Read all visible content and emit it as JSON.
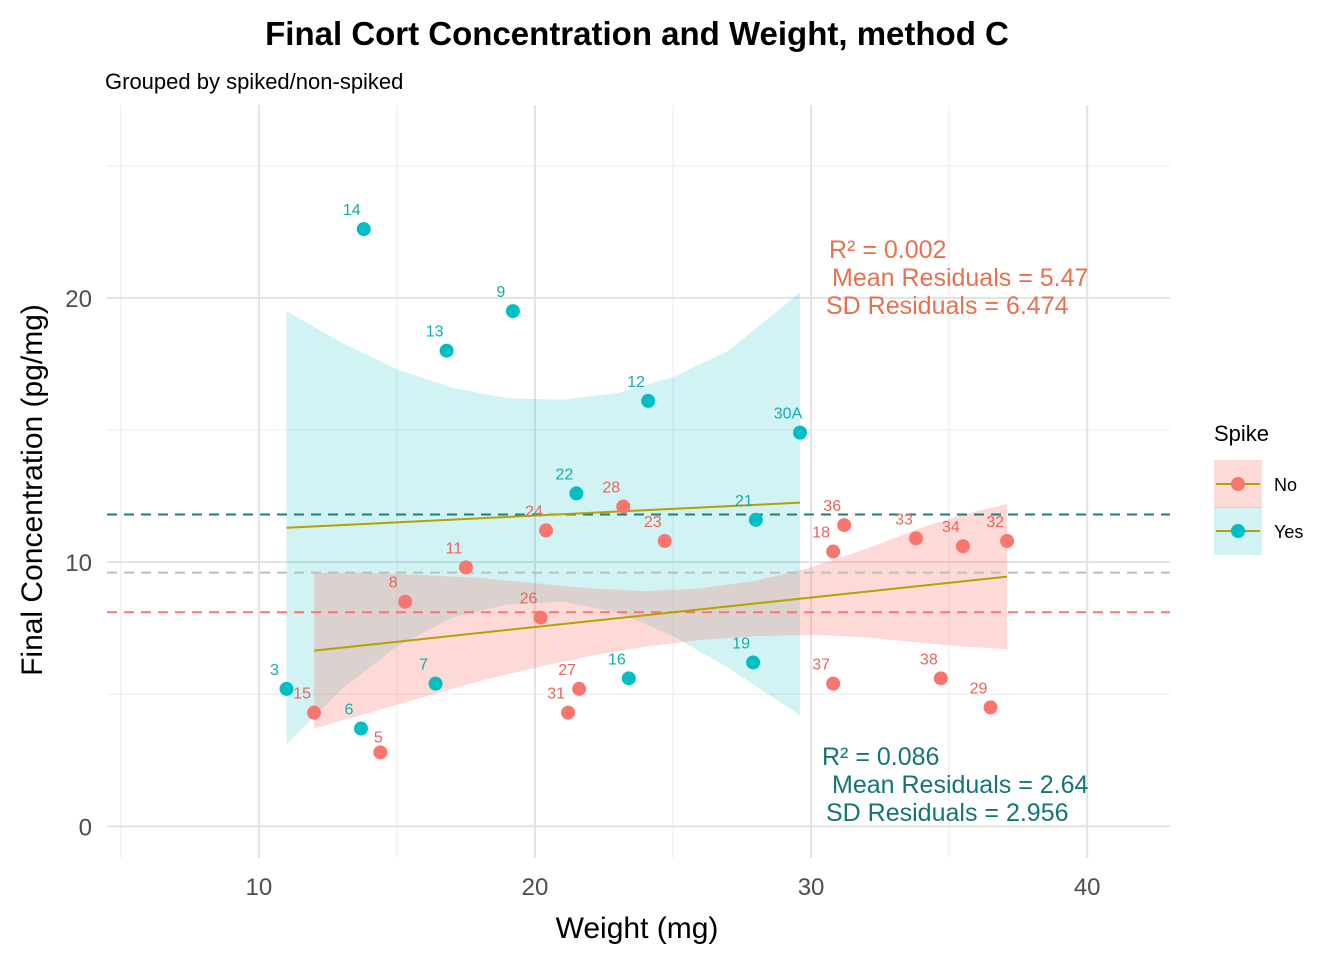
{
  "chart_data": {
    "type": "scatter",
    "title": "Final Cort Concentration and Weight, method C",
    "subtitle": "Grouped by spiked/non-spiked",
    "xlabel": "Weight (mg)",
    "ylabel": "Final Concentration (pg/mg)",
    "xlim": [
      4.5,
      43
    ],
    "ylim": [
      -1.2,
      27.3
    ],
    "x_ticks": [
      10,
      20,
      30,
      40
    ],
    "y_ticks": [
      0,
      10,
      20
    ],
    "grid": true,
    "legend": {
      "title": "Spike",
      "position": "right",
      "entries": [
        {
          "label": "No",
          "color": "#F8766D"
        },
        {
          "label": "Yes",
          "color": "#00BFC4"
        }
      ]
    },
    "series": [
      {
        "name": "No",
        "color": "#F8766D",
        "points": [
          {
            "label": "15",
            "x": 12.0,
            "y": 4.3
          },
          {
            "label": "5",
            "x": 14.4,
            "y": 2.8
          },
          {
            "label": "8",
            "x": 15.3,
            "y": 8.5
          },
          {
            "label": "11",
            "x": 17.5,
            "y": 9.8
          },
          {
            "label": "26",
            "x": 20.2,
            "y": 7.9
          },
          {
            "label": "24",
            "x": 20.4,
            "y": 11.2
          },
          {
            "label": "31",
            "x": 21.2,
            "y": 4.3
          },
          {
            "label": "27",
            "x": 21.6,
            "y": 5.2
          },
          {
            "label": "28",
            "x": 23.2,
            "y": 12.1
          },
          {
            "label": "23",
            "x": 24.7,
            "y": 10.8
          },
          {
            "label": "37",
            "x": 30.8,
            "y": 5.4
          },
          {
            "label": "18",
            "x": 30.8,
            "y": 10.4
          },
          {
            "label": "36",
            "x": 31.2,
            "y": 11.4
          },
          {
            "label": "33",
            "x": 33.8,
            "y": 10.9
          },
          {
            "label": "38",
            "x": 34.7,
            "y": 5.6
          },
          {
            "label": "34",
            "x": 35.5,
            "y": 10.6
          },
          {
            "label": "29",
            "x": 36.5,
            "y": 4.5
          },
          {
            "label": "32",
            "x": 37.1,
            "y": 10.8
          }
        ],
        "fit": {
          "x": [
            12.0,
            37.1
          ],
          "y": [
            6.65,
            9.45
          ]
        },
        "band": {
          "x": [
            12.0,
            14.0,
            16.0,
            18.0,
            20.0,
            22.0,
            24.0,
            26.0,
            28.0,
            30.0,
            32.0,
            34.0,
            35.5,
            37.1
          ],
          "lower": [
            3.7,
            4.3,
            4.9,
            5.5,
            6.0,
            6.45,
            6.8,
            7.05,
            7.2,
            7.25,
            7.15,
            6.95,
            6.8,
            6.7
          ],
          "upper": [
            9.6,
            9.6,
            9.5,
            9.4,
            9.2,
            9.0,
            8.9,
            9.0,
            9.3,
            9.8,
            10.5,
            11.3,
            11.8,
            12.2
          ]
        },
        "mean_line": 8.1,
        "stats": [
          "R² = 0.002",
          "Mean Residuals = 5.47",
          "SD Residuals = 6.474"
        ]
      },
      {
        "name": "Yes",
        "color": "#00BFC4",
        "points": [
          {
            "label": "3",
            "x": 11.0,
            "y": 5.2
          },
          {
            "label": "6",
            "x": 13.7,
            "y": 3.7
          },
          {
            "label": "14",
            "x": 13.8,
            "y": 22.6
          },
          {
            "label": "7",
            "x": 16.4,
            "y": 5.4
          },
          {
            "label": "13",
            "x": 16.8,
            "y": 18.0
          },
          {
            "label": "9",
            "x": 19.2,
            "y": 19.5
          },
          {
            "label": "22",
            "x": 21.5,
            "y": 12.6
          },
          {
            "label": "16",
            "x": 23.4,
            "y": 5.6
          },
          {
            "label": "12",
            "x": 24.1,
            "y": 16.1
          },
          {
            "label": "19",
            "x": 27.9,
            "y": 6.2
          },
          {
            "label": "21",
            "x": 28.0,
            "y": 11.6
          },
          {
            "label": "30A",
            "x": 29.6,
            "y": 14.9
          }
        ],
        "fit": {
          "x": [
            11.0,
            29.6
          ],
          "y": [
            11.3,
            12.25
          ]
        },
        "band": {
          "x": [
            11.0,
            13.0,
            15.0,
            17.0,
            19.0,
            21.0,
            23.0,
            25.0,
            27.0,
            29.6
          ],
          "lower": [
            3.1,
            5.2,
            6.8,
            7.9,
            8.4,
            8.5,
            8.1,
            7.2,
            6.0,
            4.2
          ],
          "upper": [
            19.5,
            18.3,
            17.3,
            16.6,
            16.2,
            16.15,
            16.4,
            17.0,
            18.0,
            20.2
          ]
        },
        "mean_line": 11.8,
        "stats": [
          "R² = 0.086",
          "Mean Residuals = 2.64",
          "SD Residuals = 2.956"
        ]
      }
    ],
    "overall_mean_line": 9.6,
    "fit_line_color": "#B8A000",
    "mean_line_colors": {
      "No": "#F8766D",
      "Yes": "#1B7F7F",
      "overall": "#BEBEBE"
    }
  }
}
